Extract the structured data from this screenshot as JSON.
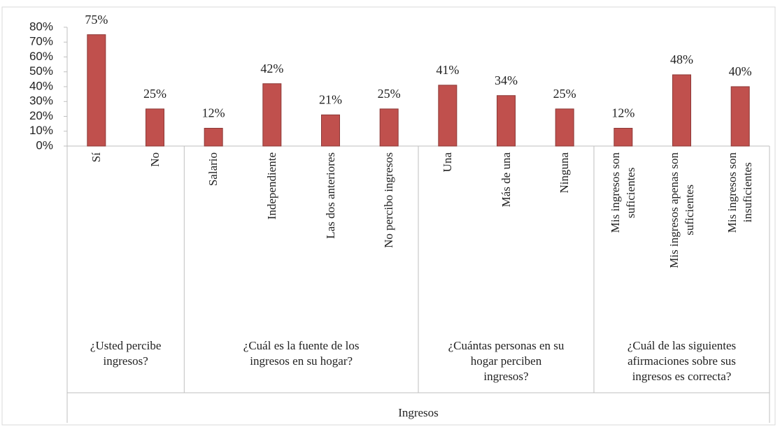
{
  "chart_data": {
    "type": "bar",
    "color": "#c0504d",
    "ylim": [
      0,
      80
    ],
    "yticks": [
      {
        "value": 0,
        "label": "0%"
      },
      {
        "value": 10,
        "label": "10%"
      },
      {
        "value": 20,
        "label": "20%"
      },
      {
        "value": 30,
        "label": "30%"
      },
      {
        "value": 40,
        "label": "40%"
      },
      {
        "value": 50,
        "label": "50%"
      },
      {
        "value": 60,
        "label": "60%"
      },
      {
        "value": 70,
        "label": "70%"
      },
      {
        "value": 80,
        "label": "80%"
      }
    ],
    "x_label": "Ingresos",
    "groups": [
      {
        "name": "¿Usted percibe\ningresos?",
        "categories": [
          "Sí",
          "No"
        ],
        "values": [
          75,
          25
        ],
        "value_labels": [
          "75%",
          "25%"
        ]
      },
      {
        "name": "¿Cuál es la fuente de los\ningresos en su hogar?",
        "categories": [
          "Salario",
          "Independiente",
          "Las dos anteriores",
          "No percibo ingresos"
        ],
        "values": [
          12,
          42,
          21,
          25
        ],
        "value_labels": [
          "12%",
          "42%",
          "21%",
          "25%"
        ]
      },
      {
        "name": "¿Cuántas personas en su\nhogar perciben\ningresos?",
        "categories": [
          "Una",
          "Más de una",
          "Ninguna"
        ],
        "values": [
          41,
          34,
          25
        ],
        "value_labels": [
          "41%",
          "34%",
          "25%"
        ]
      },
      {
        "name": "¿Cuál de las siguientes\nafirmaciones sobre sus\ningresos es correcta?",
        "categories": [
          "Mis ingresos son\nsuficientes",
          "Mis ingresos apenas son\nsuficientes",
          "Mis ingresos son\ninsuficientes"
        ],
        "values": [
          12,
          48,
          40
        ],
        "value_labels": [
          "12%",
          "48%",
          "40%"
        ]
      }
    ]
  }
}
